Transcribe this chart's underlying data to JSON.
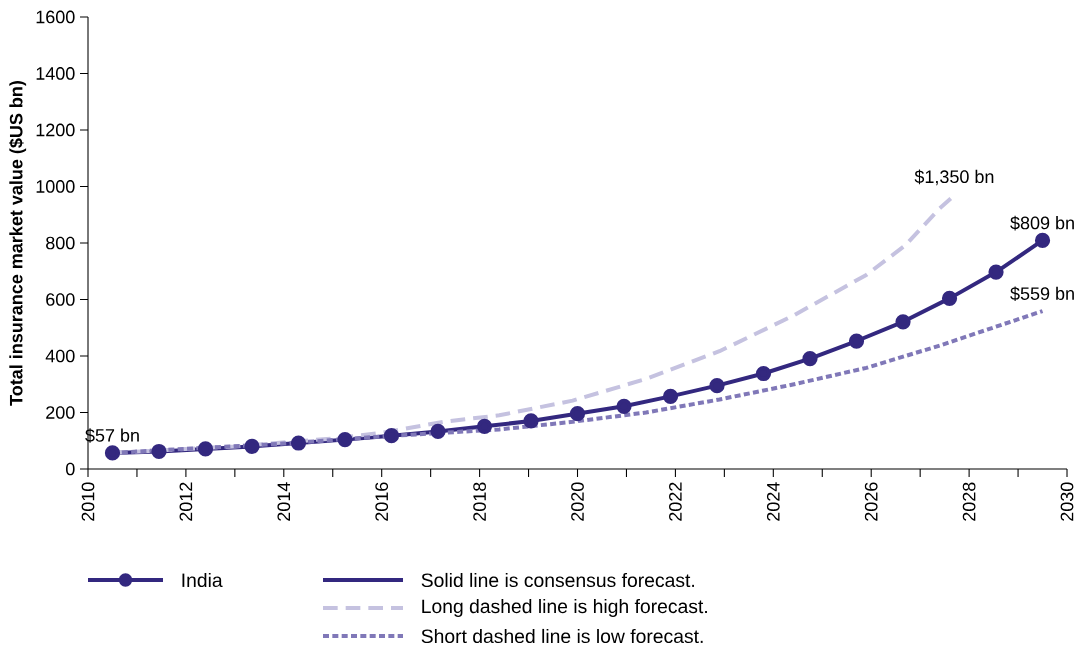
{
  "chart_data": {
    "type": "line",
    "ylabel": "Total insurance market value ($US bn)",
    "xlim": [
      2010,
      2030
    ],
    "xticks": [
      2010,
      2012,
      2014,
      2016,
      2018,
      2020,
      2022,
      2024,
      2026,
      2028,
      2030
    ],
    "ylim": [
      0,
      1600
    ],
    "yticks": [
      0,
      200,
      400,
      600,
      800,
      1000,
      1200,
      1400,
      1600
    ],
    "grid": false,
    "legend": "bottom",
    "series": [
      {
        "name": "India",
        "color": "#33287f",
        "marker": "circle",
        "line_style": "solid",
        "x": [
          2010.5,
          2011.45,
          2012.4,
          2013.35,
          2014.3,
          2015.25,
          2016.2,
          2017.15,
          2018.1,
          2019.05,
          2020,
          2020.95,
          2021.9,
          2022.85,
          2023.8,
          2024.75,
          2025.7,
          2026.65,
          2027.6,
          2028.55,
          2029.5
        ],
        "values": [
          57,
          62,
          71,
          80,
          92,
          104,
          118,
          133,
          151,
          170,
          196,
          222,
          257,
          295,
          338,
          391,
          453,
          521,
          604,
          697,
          809
        ]
      },
      {
        "name": "Long dashed line is high forecast.",
        "color": "#c5c2e0",
        "line_style": "dashed",
        "x": [
          2010.5,
          2013,
          2015,
          2016,
          2017.3,
          2018.4,
          2019.9,
          2021.4,
          2022.9,
          2024.4,
          2025.9,
          2026.7,
          2027.4,
          2027.7
        ],
        "values": [
          57,
          80,
          108,
          128,
          168,
          190,
          242,
          319,
          417,
          542,
          687,
          792,
          923,
          969
        ]
      },
      {
        "name": "Short dashed line is low forecast.",
        "color": "#8078b8",
        "line_style": "dotted",
        "x": [
          2010.5,
          2014,
          2016,
          2018.4,
          2019.9,
          2021.4,
          2022.9,
          2024.4,
          2025.9,
          2027.4,
          2029.5
        ],
        "values": [
          57,
          90,
          115,
          140,
          167,
          200,
          246,
          299,
          358,
          437,
          559
        ]
      }
    ],
    "annotations": [
      {
        "text": "$57 bn",
        "x": 2010.5,
        "y": 57
      },
      {
        "text": "$1,350 bn",
        "x": 2027.7,
        "y": 969
      },
      {
        "text": "$809 bn",
        "x": 2029.5,
        "y": 809
      },
      {
        "text": "$559 bn",
        "x": 2029.5,
        "y": 559
      },
      "Solid line is consensus forecast."
    ]
  }
}
